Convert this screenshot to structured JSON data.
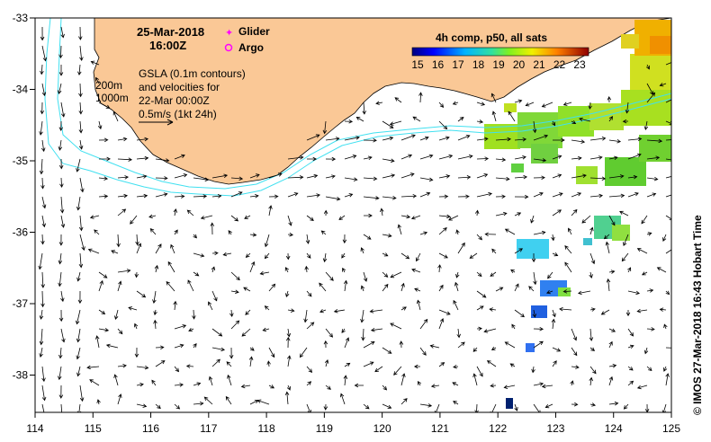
{
  "map": {
    "date": "25-Mar-2018",
    "time": "16:00Z",
    "legend": {
      "glider": "Glider",
      "argo": "Argo",
      "glider_color": "#ff00ff",
      "argo_color": "#ff00ff"
    },
    "contours": {
      "c200": "200m",
      "c1000": "1000m"
    },
    "info": [
      "GSLA (0.1m contours)",
      "and velocities for",
      "22-Mar 00:00Z",
      "0.5m/s (1kt 24h)"
    ],
    "colorbar": {
      "title": "4h comp, p50, all sats",
      "labels": [
        "15",
        "16",
        "17",
        "18",
        "19",
        "20",
        "21",
        "22",
        "23"
      ]
    },
    "credit": "©  IMOS 27-Mar-2018 16:43 Hobart Time",
    "x_ticks": [
      "114",
      "115",
      "116",
      "117",
      "118",
      "119",
      "120",
      "121",
      "122",
      "123",
      "124",
      "125"
    ],
    "y_ticks": [
      "-33",
      "-34",
      "-35",
      "-36",
      "-37",
      "-38"
    ],
    "colors": {
      "land": "#fac896",
      "isobath": "#40e0f0",
      "background": "#ffffff"
    }
  }
}
